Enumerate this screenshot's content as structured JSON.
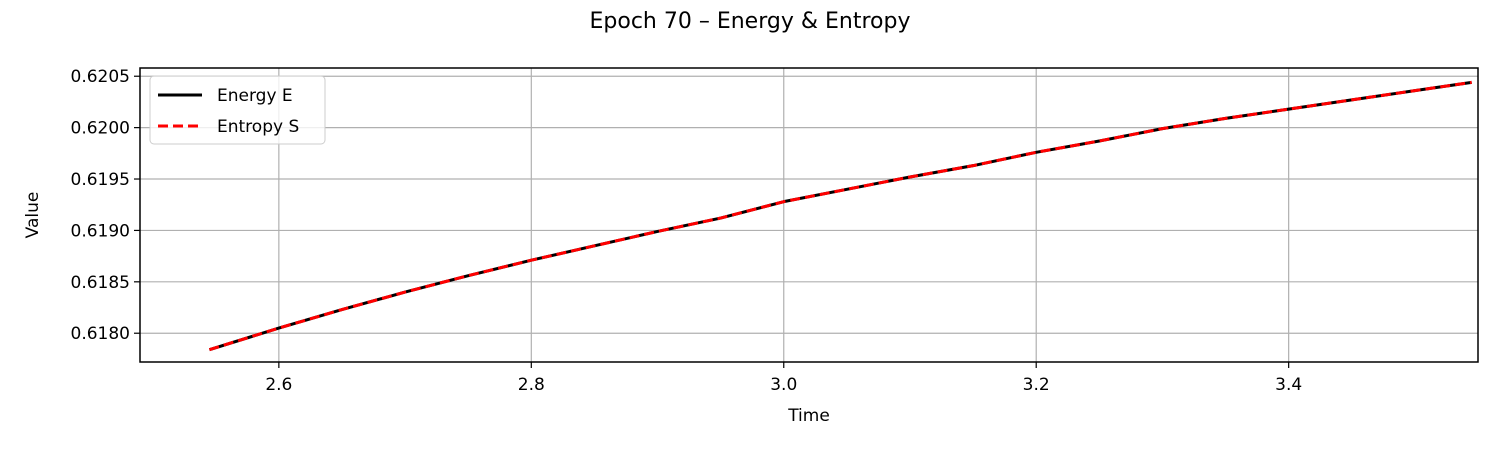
{
  "chart_data": {
    "type": "line",
    "title": "Epoch 70 – Energy & Entropy",
    "xlabel": "Time",
    "ylabel": "Value",
    "xlim": [
      2.49,
      3.55
    ],
    "ylim": [
      0.61772,
      0.62058
    ],
    "xticks": [
      2.6,
      2.8,
      3.0,
      3.2,
      3.4
    ],
    "xtick_labels": [
      "2.6",
      "2.8",
      "3.0",
      "3.2",
      "3.4"
    ],
    "yticks": [
      0.618,
      0.6185,
      0.619,
      0.6195,
      0.62,
      0.6205
    ],
    "ytick_labels": [
      "0.6180",
      "0.6185",
      "0.6190",
      "0.6195",
      "0.6200",
      "0.6205"
    ],
    "grid": true,
    "legend": "upper-left",
    "x": [
      2.545,
      2.6,
      2.65,
      2.7,
      2.75,
      2.8,
      2.85,
      2.9,
      2.95,
      3.0,
      3.05,
      3.1,
      3.15,
      3.2,
      3.25,
      3.3,
      3.35,
      3.4,
      3.45,
      3.5,
      3.545
    ],
    "series": [
      {
        "name": "Energy E",
        "color": "#000000",
        "style": "solid",
        "values": [
          0.61784,
          0.61805,
          0.61823,
          0.6184,
          0.61856,
          0.61871,
          0.61885,
          0.61899,
          0.61912,
          0.61928,
          0.6194,
          0.61952,
          0.61963,
          0.61976,
          0.61987,
          0.61999,
          0.62009,
          0.62018,
          0.62027,
          0.62036,
          0.62044
        ]
      },
      {
        "name": "Entropy S",
        "color": "#ff0000",
        "style": "dashed",
        "values": [
          0.61784,
          0.61805,
          0.61823,
          0.6184,
          0.61856,
          0.61871,
          0.61885,
          0.61899,
          0.61912,
          0.61928,
          0.6194,
          0.61952,
          0.61963,
          0.61976,
          0.61987,
          0.61999,
          0.62009,
          0.62018,
          0.62027,
          0.62036,
          0.62044
        ]
      }
    ]
  }
}
